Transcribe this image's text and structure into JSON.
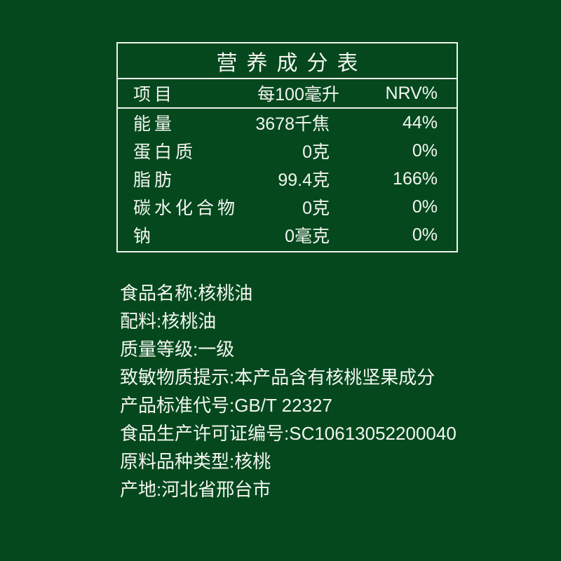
{
  "colors": {
    "background": "#05481d",
    "line": "#eef3ee",
    "text": "#f3f6f1"
  },
  "nutrition_table": {
    "title": "营养成分表",
    "columns": {
      "item": "项目",
      "per_100ml": "每100毫升",
      "nrv": "NRV%"
    },
    "rows": [
      {
        "item": "能量",
        "amount": "3678千焦",
        "nrv": "44%"
      },
      {
        "item": "蛋白质",
        "amount": "0克",
        "nrv": "0%"
      },
      {
        "item": "脂肪",
        "amount": "99.4克",
        "nrv": "166%"
      },
      {
        "item": "碳水化合物",
        "amount": "0克",
        "nrv": "0%"
      },
      {
        "item": "钠",
        "amount": "0毫克",
        "nrv": "0%"
      }
    ]
  },
  "product_info": {
    "lines": [
      "食品名称:核桃油",
      "配料:核桃油",
      "质量等级:一级",
      "致敏物质提示:本产品含有核桃坚果成分",
      "产品标准代号:GB/T 22327",
      "食品生产许可证编号:SC10613052200040",
      "原料品种类型:核桃",
      "产地:河北省邢台市"
    ]
  }
}
